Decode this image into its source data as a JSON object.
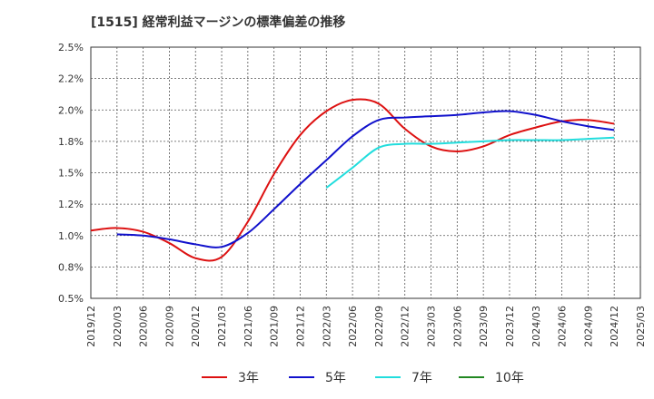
{
  "title": "[1515]  経常利益マージンの標準偏差の推移",
  "chart_data": {
    "type": "line",
    "title": "[1515]  経常利益マージンの標準偏差の推移",
    "xlabel": "",
    "ylabel": "",
    "ylim": [
      0.5,
      2.5
    ],
    "grid": true,
    "legend_position": "bottom",
    "x_ticks": [
      "2019/12",
      "2020/03",
      "2020/06",
      "2020/09",
      "2020/12",
      "2021/03",
      "2021/06",
      "2021/09",
      "2021/12",
      "2022/03",
      "2022/06",
      "2022/09",
      "2022/12",
      "2023/03",
      "2023/06",
      "2023/09",
      "2023/12",
      "2024/03",
      "2024/06",
      "2024/09",
      "2024/12",
      "2025/03"
    ],
    "y_ticks": [
      "0.5%",
      "0.8%",
      "1.0%",
      "1.2%",
      "1.5%",
      "1.8%",
      "2.0%",
      "2.2%",
      "2.5%"
    ],
    "y_tick_values": [
      0.5,
      0.75,
      1.0,
      1.25,
      1.5,
      1.75,
      2.0,
      2.25,
      2.5
    ],
    "series": [
      {
        "name": "3年",
        "color": "#dd1111",
        "points": [
          [
            "2019/12",
            1.04
          ],
          [
            "2020/03",
            1.06
          ],
          [
            "2020/06",
            1.03
          ],
          [
            "2020/09",
            0.94
          ],
          [
            "2020/12",
            0.82
          ],
          [
            "2021/03",
            0.83
          ],
          [
            "2021/06",
            1.11
          ],
          [
            "2021/09",
            1.49
          ],
          [
            "2021/12",
            1.8
          ],
          [
            "2022/03",
            1.99
          ],
          [
            "2022/06",
            2.08
          ],
          [
            "2022/09",
            2.05
          ],
          [
            "2022/12",
            1.85
          ],
          [
            "2023/03",
            1.71
          ],
          [
            "2023/06",
            1.67
          ],
          [
            "2023/09",
            1.71
          ],
          [
            "2023/12",
            1.8
          ],
          [
            "2024/03",
            1.86
          ],
          [
            "2024/06",
            1.91
          ],
          [
            "2024/09",
            1.92
          ],
          [
            "2024/12",
            1.89
          ]
        ]
      },
      {
        "name": "5年",
        "color": "#1111cc",
        "points": [
          [
            "2020/03",
            1.01
          ],
          [
            "2020/06",
            1.0
          ],
          [
            "2020/09",
            0.97
          ],
          [
            "2020/12",
            0.93
          ],
          [
            "2021/03",
            0.91
          ],
          [
            "2021/06",
            1.02
          ],
          [
            "2021/09",
            1.21
          ],
          [
            "2021/12",
            1.41
          ],
          [
            "2022/03",
            1.6
          ],
          [
            "2022/06",
            1.79
          ],
          [
            "2022/09",
            1.92
          ],
          [
            "2022/12",
            1.94
          ],
          [
            "2023/03",
            1.95
          ],
          [
            "2023/06",
            1.96
          ],
          [
            "2023/09",
            1.98
          ],
          [
            "2023/12",
            1.99
          ],
          [
            "2024/03",
            1.96
          ],
          [
            "2024/06",
            1.91
          ],
          [
            "2024/09",
            1.87
          ],
          [
            "2024/12",
            1.84
          ]
        ]
      },
      {
        "name": "7年",
        "color": "#22dddd",
        "points": [
          [
            "2022/03",
            1.38
          ],
          [
            "2022/06",
            1.54
          ],
          [
            "2022/09",
            1.7
          ],
          [
            "2022/12",
            1.73
          ],
          [
            "2023/03",
            1.73
          ],
          [
            "2023/06",
            1.74
          ],
          [
            "2023/09",
            1.75
          ],
          [
            "2023/12",
            1.76
          ],
          [
            "2024/03",
            1.76
          ],
          [
            "2024/06",
            1.76
          ],
          [
            "2024/09",
            1.77
          ],
          [
            "2024/12",
            1.78
          ]
        ]
      },
      {
        "name": "10年",
        "color": "#228822",
        "points": []
      }
    ]
  }
}
